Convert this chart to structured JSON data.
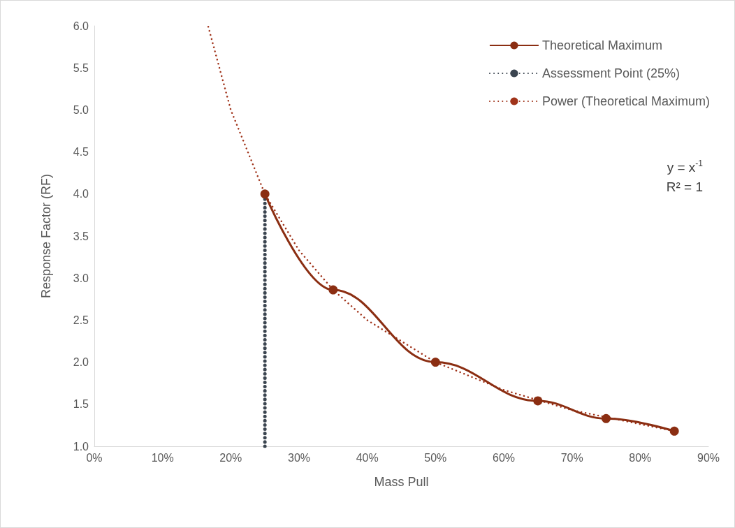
{
  "chart_data": {
    "type": "line",
    "xlabel": "Mass Pull",
    "ylabel": "Response Factor (RF)",
    "xlim": [
      0,
      90
    ],
    "xticks": [
      {
        "value": 0,
        "label": "0%"
      },
      {
        "value": 10,
        "label": "10%"
      },
      {
        "value": 20,
        "label": "20%"
      },
      {
        "value": 30,
        "label": "30%"
      },
      {
        "value": 40,
        "label": "40%"
      },
      {
        "value": 50,
        "label": "50%"
      },
      {
        "value": 60,
        "label": "60%"
      },
      {
        "value": 70,
        "label": "70%"
      },
      {
        "value": 80,
        "label": "80%"
      },
      {
        "value": 90,
        "label": "90%"
      }
    ],
    "ylim": [
      1.0,
      6.0
    ],
    "yticks": [
      {
        "value": 1,
        "label": "1.0"
      },
      {
        "value": 1.5,
        "label": "1.5"
      },
      {
        "value": 2,
        "label": "2.0"
      },
      {
        "value": 2.5,
        "label": "2.5"
      },
      {
        "value": 3,
        "label": "3.0"
      },
      {
        "value": 3.5,
        "label": "3.5"
      },
      {
        "value": 4,
        "label": "4.0"
      },
      {
        "value": 4.5,
        "label": "4.5"
      },
      {
        "value": 5,
        "label": "5.0"
      },
      {
        "value": 5.5,
        "label": "5.5"
      },
      {
        "value": 6,
        "label": "6.0"
      }
    ],
    "grid": false,
    "legend": "top right",
    "series": [
      {
        "name": "Theoretical Maximum",
        "color": "#8b2e12",
        "marker": "circle",
        "line_style": "solid",
        "x": [
          25,
          35,
          50,
          65,
          75,
          85
        ],
        "values": [
          4.0,
          2.86,
          2.0,
          1.54,
          1.33,
          1.18
        ]
      },
      {
        "name": "Assessment Point (25%)",
        "color": "#3b4550",
        "marker": "none",
        "line_style": "dotted",
        "x": [
          25,
          25
        ],
        "values": [
          1.0,
          4.0
        ]
      },
      {
        "name": "Power (Theoretical Maximum)",
        "color": "#a0331a",
        "marker": "none",
        "line_style": "dotted",
        "x": [
          16.7,
          20,
          25,
          30,
          35,
          40,
          50,
          60,
          70,
          85
        ],
        "values": [
          5.99,
          5.0,
          4.0,
          3.33,
          2.86,
          2.5,
          2.0,
          1.67,
          1.43,
          1.18
        ]
      }
    ],
    "annotations": [
      "y = x$^{-1}$",
      "R² = 1"
    ]
  }
}
